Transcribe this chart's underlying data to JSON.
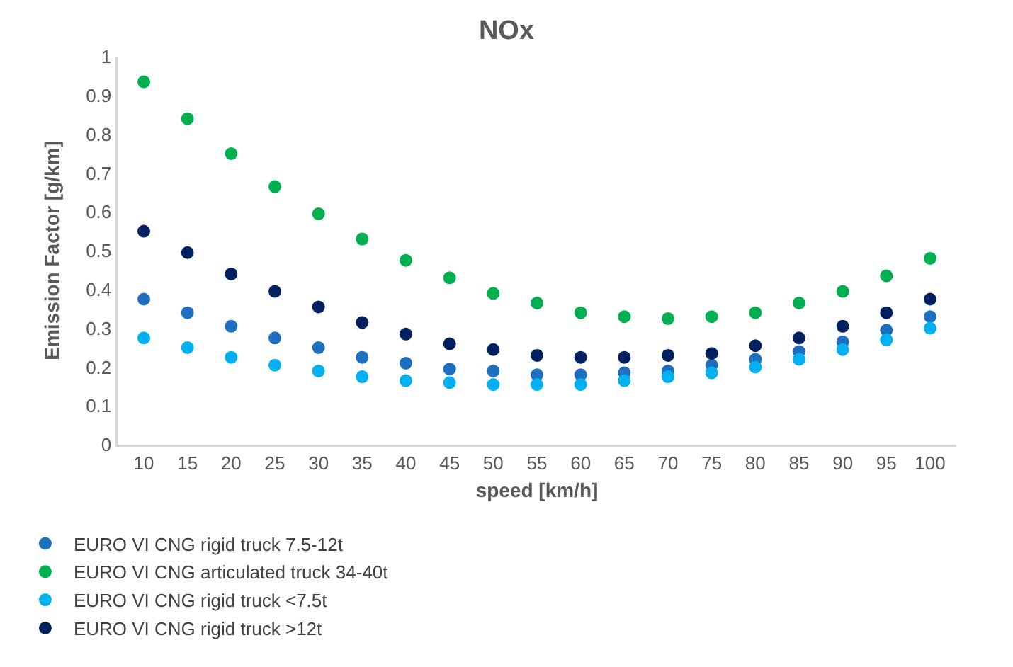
{
  "chart_data": {
    "type": "scatter",
    "title": "NOx",
    "xlabel": "speed [km/h]",
    "ylabel": "Emission Factor [g/km]",
    "categories": [
      "10",
      "15",
      "20",
      "25",
      "30",
      "35",
      "40",
      "45",
      "50",
      "55",
      "60",
      "65",
      "70",
      "75",
      "80",
      "85",
      "90",
      "95",
      "100"
    ],
    "ylim": [
      0,
      1
    ],
    "yticks": [
      0,
      0.1,
      0.2,
      0.3,
      0.4,
      0.5,
      0.6,
      0.7,
      0.8,
      0.9,
      1
    ],
    "grid": false,
    "legend": "bottom",
    "marker": "circle",
    "series": [
      {
        "name": "EURO VI CNG rigid truck 7.5-12t",
        "color": "#1f6fc0",
        "values": [
          0.375,
          0.34,
          0.305,
          0.275,
          0.25,
          0.225,
          0.21,
          0.195,
          0.19,
          0.18,
          0.18,
          0.185,
          0.19,
          0.205,
          0.22,
          0.24,
          0.265,
          0.295,
          0.33
        ]
      },
      {
        "name": "EURO VI CNG articulated truck 34-40t",
        "color": "#00b050",
        "values": [
          0.935,
          0.84,
          0.75,
          0.665,
          0.595,
          0.53,
          0.475,
          0.43,
          0.39,
          0.365,
          0.34,
          0.33,
          0.325,
          0.33,
          0.34,
          0.365,
          0.395,
          0.435,
          0.48
        ]
      },
      {
        "name": "EURO VI CNG rigid truck <7.5t",
        "color": "#00b0f0",
        "values": [
          0.275,
          0.25,
          0.225,
          0.205,
          0.19,
          0.175,
          0.165,
          0.16,
          0.155,
          0.155,
          0.155,
          0.165,
          0.175,
          0.185,
          0.2,
          0.22,
          0.245,
          0.27,
          0.3
        ]
      },
      {
        "name": "EURO VI CNG rigid truck >12t",
        "color": "#002060",
        "values": [
          0.55,
          0.495,
          0.44,
          0.395,
          0.355,
          0.315,
          0.285,
          0.26,
          0.245,
          0.23,
          0.225,
          0.225,
          0.23,
          0.235,
          0.255,
          0.275,
          0.305,
          0.34,
          0.375
        ]
      }
    ]
  }
}
